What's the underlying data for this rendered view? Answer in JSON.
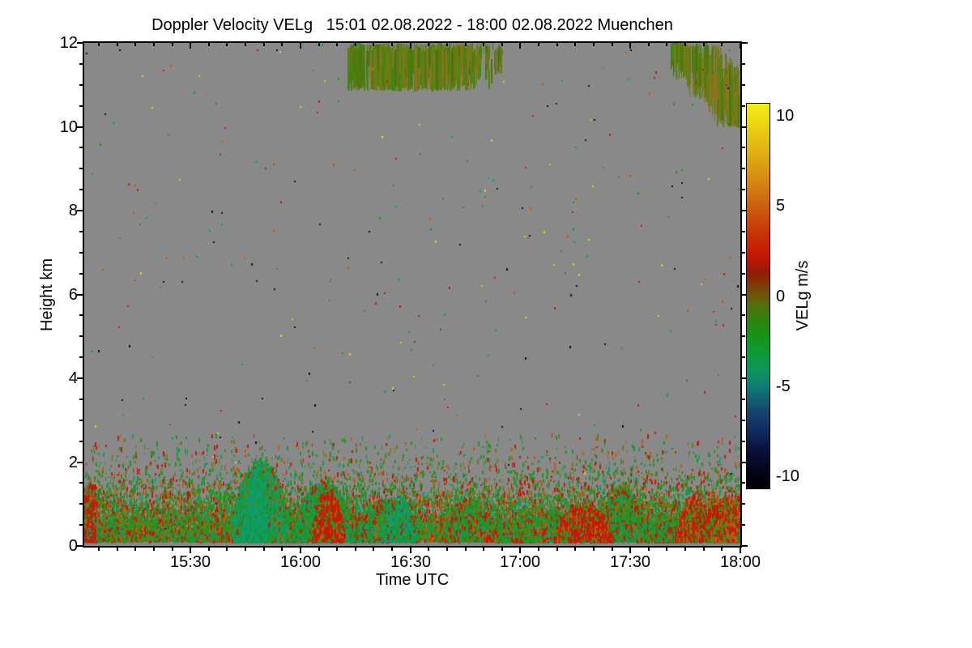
{
  "chart_data": {
    "type": "heatmap",
    "title": "Doppler Velocity VELg   15:01 02.08.2022 - 18:00 02.08.2022 Muenchen",
    "instrument_quantity": "Doppler Velocity VELg",
    "time_start": "15:01 02.08.2022",
    "time_end": "18:00 02.08.2022",
    "station": "Muenchen",
    "xlabel": "Time UTC",
    "ylabel": "Height km",
    "x_range_minutes": [
      0,
      179
    ],
    "x_start_label": "15:01",
    "y_range_km": [
      0,
      12
    ],
    "grid": false,
    "background_color": "#898989",
    "x_ticks": [
      {
        "label": "15:30",
        "t": 29
      },
      {
        "label": "16:00",
        "t": 59
      },
      {
        "label": "16:30",
        "t": 89
      },
      {
        "label": "17:00",
        "t": 119
      },
      {
        "label": "17:30",
        "t": 149
      },
      {
        "label": "18:00",
        "t": 179
      }
    ],
    "x_minor_step_minutes": 5,
    "y_ticks": [
      {
        "label": "0",
        "h": 0
      },
      {
        "label": "2",
        "h": 2
      },
      {
        "label": "4",
        "h": 4
      },
      {
        "label": "6",
        "h": 6
      },
      {
        "label": "8",
        "h": 8
      },
      {
        "label": "10",
        "h": 10
      },
      {
        "label": "12",
        "h": 12
      }
    ],
    "y_minor_step_km": 0.5,
    "colorbar": {
      "label": "VELg m/s",
      "range": [
        -10,
        10
      ],
      "display_range": [
        -10.67,
        10.67
      ],
      "ticks": [
        {
          "label": "10",
          "v": 10
        },
        {
          "label": "5",
          "v": 5
        },
        {
          "label": "0",
          "v": 0
        },
        {
          "label": "-5",
          "v": -5
        },
        {
          "label": "-10",
          "v": -10
        }
      ],
      "minor_step": 1,
      "stops": [
        {
          "v": 10.67,
          "c": "#f2ee16"
        },
        {
          "v": 10.0,
          "c": "#efdf13"
        },
        {
          "v": 8.0,
          "c": "#e0b014"
        },
        {
          "v": 6.5,
          "c": "#d68c12"
        },
        {
          "v": 5.0,
          "c": "#cc6010"
        },
        {
          "v": 3.5,
          "c": "#c83607"
        },
        {
          "v": 2.2,
          "c": "#c41505"
        },
        {
          "v": 1.2,
          "c": "#8e1e06"
        },
        {
          "v": 0.5,
          "c": "#7a4209"
        },
        {
          "v": 0.0,
          "c": "#6a580c"
        },
        {
          "v": -0.6,
          "c": "#4e720e"
        },
        {
          "v": -1.4,
          "c": "#2c8410"
        },
        {
          "v": -2.2,
          "c": "#179218"
        },
        {
          "v": -3.0,
          "c": "#0f9a30"
        },
        {
          "v": -4.0,
          "c": "#0e9656"
        },
        {
          "v": -5.0,
          "c": "#117d74"
        },
        {
          "v": -6.3,
          "c": "#14486f"
        },
        {
          "v": -7.5,
          "c": "#102a60"
        },
        {
          "v": -8.7,
          "c": "#090d38"
        },
        {
          "v": -10.0,
          "c": "#030310"
        },
        {
          "v": -10.67,
          "c": "#020208"
        }
      ]
    },
    "palette": {
      "green": "#1e9622",
      "teal": "#0c9c6e",
      "red": "#c41a06",
      "orange": "#c05a0e",
      "olive": "#6e7a14",
      "yellow": "#e2d01a",
      "navy": "#10104a",
      "black": "#0c0c0c",
      "dgreen": "#4a7c10",
      "cgreen": "#3f8a12",
      "brown": "#8a7420",
      "dolive": "#516e10"
    },
    "features": {
      "seed": 20220802,
      "sparse_dots": {
        "count": 330,
        "weights": {
          "orange": 0.2,
          "yellow": 0.15,
          "red": 0.17,
          "green": 0.17,
          "teal": 0.13,
          "navy": 0.09,
          "black": 0.09
        }
      },
      "boundary_layer": {
        "count": 23000,
        "mean_km": 0.48,
        "max_km": 2.6,
        "min_km": 0.07,
        "weights": {
          "green": 0.46,
          "teal": 0.1,
          "red": 0.2,
          "orange": 0.12,
          "olive": 0.12
        }
      },
      "blobs": [
        {
          "name": "left-edge-red-column",
          "t0": 0,
          "t1": 3,
          "hmax": 1.45,
          "count": 1300,
          "shape": "column",
          "weights": {
            "red": 0.62,
            "orange": 0.12,
            "green": 0.16,
            "teal": 0.1
          }
        },
        {
          "name": "updraft-1545",
          "t0": 40,
          "t1": 56,
          "hmax": 1.85,
          "count": 8500,
          "shape": "dome",
          "weights": {
            "green": 0.42,
            "teal": 0.4,
            "red": 0.1,
            "orange": 0.08
          }
        },
        {
          "name": "updraft-1545-teal-core",
          "t0": 43,
          "t1": 50,
          "hmax": 1.6,
          "count": 2500,
          "shape": "dome",
          "weights": {
            "teal": 0.75,
            "green": 0.25
          }
        },
        {
          "name": "updraft-1600",
          "t0": 56.5,
          "t1": 74,
          "hmax": 1.35,
          "count": 7500,
          "shape": "dome",
          "weights": {
            "green": 0.5,
            "teal": 0.28,
            "red": 0.16,
            "orange": 0.06
          }
        },
        {
          "name": "downdraft-red-1605",
          "t0": 62,
          "t1": 71,
          "hmax": 1.18,
          "count": 2600,
          "shape": "dome",
          "weights": {
            "red": 0.68,
            "orange": 0.12,
            "green": 0.2
          }
        },
        {
          "name": "mixed-1620",
          "t0": 74,
          "t1": 91,
          "hmax": 0.95,
          "count": 4200,
          "shape": "dome",
          "weights": {
            "green": 0.48,
            "teal": 0.22,
            "red": 0.22,
            "orange": 0.08
          }
        },
        {
          "name": "teal-1625",
          "t0": 82,
          "t1": 90,
          "hmax": 1.02,
          "count": 1800,
          "shape": "dome",
          "weights": {
            "teal": 0.55,
            "green": 0.35,
            "red": 0.1
          }
        },
        {
          "name": "band-1645-1800",
          "t0": 98,
          "t1": 179,
          "hmax": 1.28,
          "count": 14500,
          "shape": "noise",
          "weights": {
            "green": 0.52,
            "teal": 0.14,
            "red": 0.22,
            "orange": 0.12
          }
        },
        {
          "name": "red-1710",
          "t0": 128,
          "t1": 144,
          "hmax": 0.92,
          "count": 2400,
          "shape": "dome",
          "weights": {
            "red": 0.58,
            "orange": 0.18,
            "green": 0.24
          }
        },
        {
          "name": "red-1745",
          "t0": 161,
          "t1": 171,
          "hmax": 1.05,
          "count": 2000,
          "shape": "dome",
          "weights": {
            "red": 0.52,
            "orange": 0.22,
            "green": 0.26
          }
        },
        {
          "name": "corner-1755",
          "t0": 170,
          "t1": 179,
          "hmax": 1.12,
          "count": 2000,
          "shape": "column",
          "weights": {
            "red": 0.4,
            "orange": 0.32,
            "green": 0.28
          }
        }
      ],
      "cirrus": [
        {
          "name": "cirrus-main",
          "t0": 71.5,
          "t1": 114,
          "count": 560,
          "top_km": 12,
          "base_km": 10.85,
          "clusters": [
            [
              77,
              3.5
            ],
            [
              86,
              5
            ],
            [
              99,
              5
            ]
          ],
          "deep_center": 88,
          "weights": {
            "olive": 0.3,
            "dgreen": 0.24,
            "cgreen": 0.18,
            "brown": 0.14,
            "dolive": 0.14
          }
        },
        {
          "name": "cirrus-right-descending",
          "t0": 160,
          "t1": 179,
          "count": 340,
          "slope_ref_t": 158,
          "slope_km_per_min": 0.095,
          "min_km": 9.95,
          "weights": {
            "olive": 0.34,
            "brown": 0.22,
            "dgreen": 0.2,
            "dolive": 0.14,
            "cgreen": 0.1
          }
        }
      ],
      "insect_line": {
        "h_km": 1.03,
        "dash_min": 1.2,
        "step_min": 2.2,
        "skip_p": 0.25,
        "thickness": 2
      }
    }
  }
}
